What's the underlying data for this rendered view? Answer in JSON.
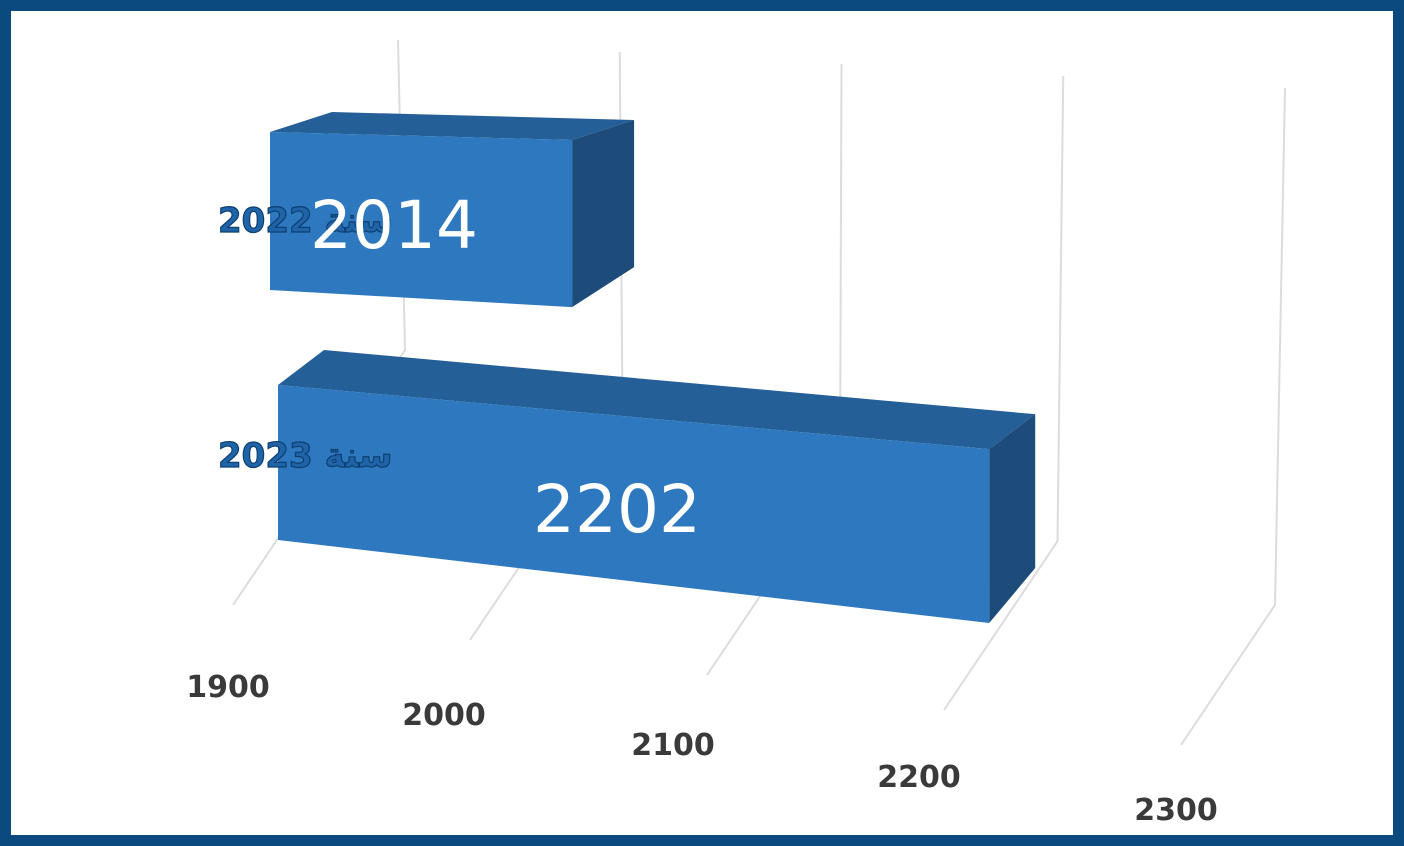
{
  "chart_data": {
    "type": "bar",
    "orientation": "horizontal",
    "style": "3d",
    "categories": [
      "سنة 2022",
      "سنة 2023"
    ],
    "values": [
      2014,
      2202
    ],
    "data_labels": [
      "2014",
      "2202"
    ],
    "xlim": [
      1900,
      2300
    ],
    "x_ticks": [
      "1900",
      "2000",
      "2100",
      "2200",
      "2300"
    ],
    "grid": true,
    "legend": "none",
    "colors": {
      "bar_front": "#2e78bf",
      "bar_top": "#255f97",
      "bar_side": "#1d4c7a",
      "category_text": "#1f63a8",
      "frame": "#0b4a7e"
    }
  }
}
